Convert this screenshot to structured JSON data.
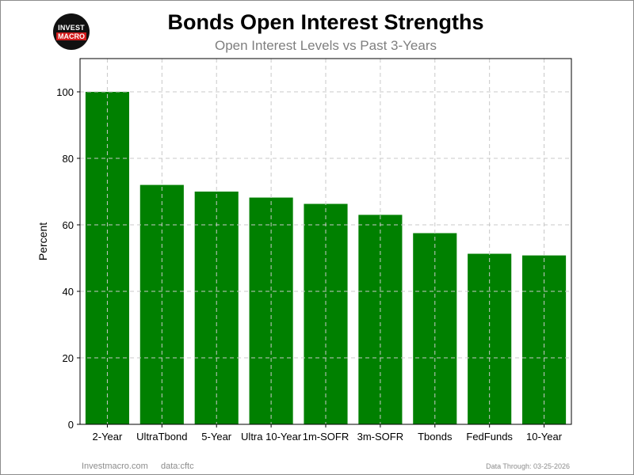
{
  "logo": {
    "top": "INVEST",
    "bottom": "MACRO"
  },
  "chart_data": {
    "type": "bar",
    "title": "Bonds Open Interest Strengths",
    "subtitle": "Open Interest Levels vs Past 3-Years",
    "ylabel": "Percent",
    "xlabel": "",
    "categories": [
      "2-Year",
      "UltraTbond",
      "5-Year",
      "Ultra 10-Year",
      "1m-SOFR",
      "3m-SOFR",
      "Tbonds",
      "FedFunds",
      "10-Year"
    ],
    "values": [
      100,
      72,
      70,
      68.2,
      66.3,
      63,
      57.5,
      51.3,
      50.8
    ],
    "ylim": [
      0,
      110
    ],
    "yticks": [
      0,
      20,
      40,
      60,
      80,
      100
    ],
    "bar_color": "#008000",
    "grid": true
  },
  "footer": {
    "site": "Investmacro.com",
    "source": "data:cftc",
    "date": "Data Through: 03-25-2026"
  }
}
